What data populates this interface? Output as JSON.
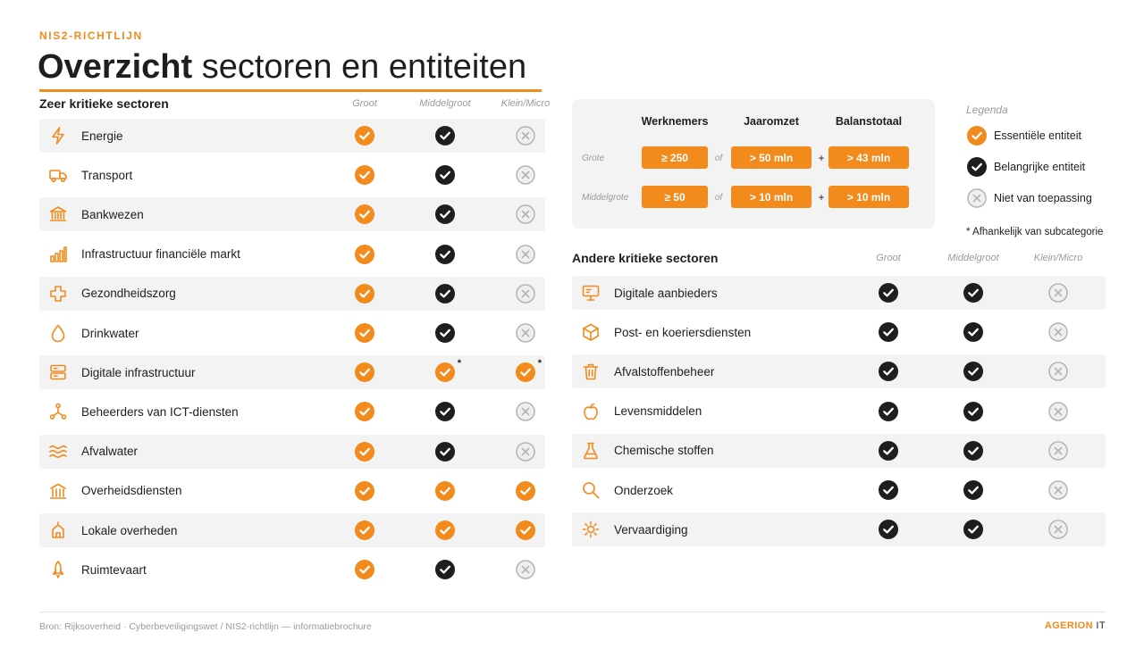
{
  "header": {
    "eyebrow": "NIS2-RICHTLIJN",
    "title_bold": "Overzicht",
    "title_rest": "sectoren en entiteiten"
  },
  "colors": {
    "accent": "#f28a1c",
    "essential": "#f28a1c",
    "important": "#1e1e1e",
    "not_applicable": "#b4b4b4",
    "row_shade": "#f3f3f3"
  },
  "columns": {
    "large": "Groot",
    "medium": "Middelgroot",
    "small": "Klein/Micro"
  },
  "left_section": {
    "title": "Zeer kritieke sectoren",
    "rows": [
      {
        "label": "Energie",
        "icon": "lightning-icon",
        "marks": [
          "essential",
          "important",
          "na"
        ],
        "asterisks": [
          false,
          false,
          false
        ]
      },
      {
        "label": "Transport",
        "icon": "truck-icon",
        "marks": [
          "essential",
          "important",
          "na"
        ],
        "asterisks": [
          false,
          false,
          false
        ]
      },
      {
        "label": "Bankwezen",
        "icon": "bank-icon",
        "marks": [
          "essential",
          "important",
          "na"
        ],
        "asterisks": [
          false,
          false,
          false
        ]
      },
      {
        "label": "Infrastructuur financiële markt",
        "icon": "bar-chart-icon",
        "marks": [
          "essential",
          "important",
          "na"
        ],
        "asterisks": [
          false,
          false,
          false
        ]
      },
      {
        "label": "Gezondheidszorg",
        "icon": "health-cross-icon",
        "marks": [
          "essential",
          "important",
          "na"
        ],
        "asterisks": [
          false,
          false,
          false
        ]
      },
      {
        "label": "Drinkwater",
        "icon": "water-drop-icon",
        "marks": [
          "essential",
          "important",
          "na"
        ],
        "asterisks": [
          false,
          false,
          false
        ]
      },
      {
        "label": "Digitale infrastructuur",
        "icon": "server-icon",
        "marks": [
          "essential",
          "essential",
          "essential"
        ],
        "asterisks": [
          false,
          true,
          true
        ]
      },
      {
        "label": "Beheerders van ICT-diensten",
        "icon": "network-icon",
        "marks": [
          "essential",
          "important",
          "na"
        ],
        "asterisks": [
          false,
          false,
          false
        ]
      },
      {
        "label": "Afvalwater",
        "icon": "waves-icon",
        "marks": [
          "essential",
          "important",
          "na"
        ],
        "asterisks": [
          false,
          false,
          false
        ]
      },
      {
        "label": "Overheidsdiensten",
        "icon": "government-building-icon",
        "marks": [
          "essential",
          "essential",
          "essential"
        ],
        "asterisks": [
          false,
          false,
          false
        ]
      },
      {
        "label": "Lokale overheden",
        "icon": "town-hall-icon",
        "marks": [
          "essential",
          "essential",
          "essential"
        ],
        "asterisks": [
          false,
          false,
          false
        ]
      },
      {
        "label": "Ruimtevaart",
        "icon": "rocket-icon",
        "marks": [
          "essential",
          "important",
          "na"
        ],
        "asterisks": [
          false,
          false,
          false
        ]
      }
    ]
  },
  "criteria": {
    "headers": [
      "Werknemers",
      "Jaaromzet",
      "Balanstotaal"
    ],
    "rows": [
      {
        "label": "Grote",
        "employees": "≥ 250",
        "turnover": "> 50 mln",
        "balance": "> 43 mln",
        "connector_1": "of",
        "connector_2": "+"
      },
      {
        "label": "Middelgrote",
        "employees": "≥ 50",
        "turnover": "> 10 mln",
        "balance": "> 10 mln",
        "connector_1": "of",
        "connector_2": "+"
      }
    ]
  },
  "legend": {
    "title": "Legenda",
    "items": [
      {
        "type": "essential",
        "label": "Essentiële entiteit"
      },
      {
        "type": "important",
        "label": "Belangrijke entiteit"
      },
      {
        "type": "na",
        "label": "Niet van toepassing"
      }
    ],
    "footnote": "* Afhankelijk van subcategorie"
  },
  "right_section": {
    "title": "Andere kritieke sectoren",
    "rows": [
      {
        "label": "Digitale aanbieders",
        "icon": "monitor-icon",
        "marks": [
          "important",
          "important",
          "na"
        ]
      },
      {
        "label": "Post- en koeriersdiensten",
        "icon": "package-icon",
        "marks": [
          "important",
          "important",
          "na"
        ]
      },
      {
        "label": "Afvalstoffenbeheer",
        "icon": "trash-icon",
        "marks": [
          "important",
          "important",
          "na"
        ]
      },
      {
        "label": "Levensmiddelen",
        "icon": "apple-icon",
        "marks": [
          "important",
          "important",
          "na"
        ]
      },
      {
        "label": "Chemische stoffen",
        "icon": "flask-icon",
        "marks": [
          "important",
          "important",
          "na"
        ]
      },
      {
        "label": "Onderzoek",
        "icon": "magnifier-icon",
        "marks": [
          "important",
          "important",
          "na"
        ]
      },
      {
        "label": "Vervaardiging",
        "icon": "sun-gear-icon",
        "marks": [
          "important",
          "important",
          "na"
        ]
      }
    ]
  },
  "footer": {
    "source": "Bron: Rijksoverheid · Cyberbeveiligingswet / NIS2-richtlijn — informatiebrochure",
    "brand": "AGERION",
    "brand_suffix": "IT"
  }
}
